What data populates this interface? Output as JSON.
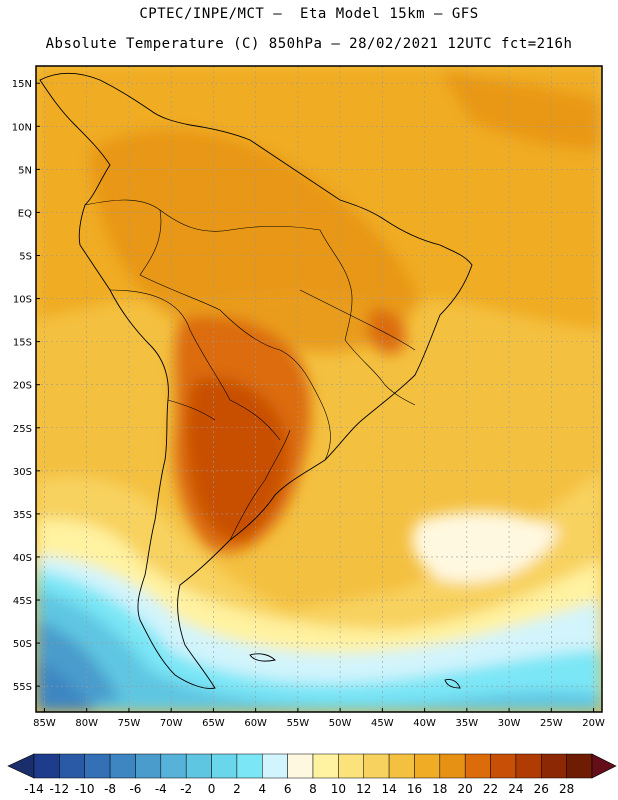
{
  "header": {
    "line1": "CPTEC/INPE/MCT –  Eta Model 15km – GFS",
    "line2": "Absolute Temperature (C) 850hPa – 28/02/2021 12UTC fct=216h"
  },
  "map": {
    "lon_labels": [
      "85W",
      "80W",
      "75W",
      "70W",
      "65W",
      "60W",
      "55W",
      "50W",
      "45W",
      "40W",
      "35W",
      "30W",
      "25W",
      "20W"
    ],
    "lat_labels": [
      "15N",
      "10N",
      "5N",
      "EQ",
      "5S",
      "10S",
      "15S",
      "20S",
      "25S",
      "30S",
      "35S",
      "40S",
      "45S",
      "50S",
      "55S"
    ],
    "lon_range": [
      -86,
      -19
    ],
    "lat_range": [
      17,
      -58
    ]
  },
  "colorbar": {
    "labels": [
      "-14",
      "-12",
      "-10",
      "-8",
      "-6",
      "-4",
      "-2",
      "0",
      "2",
      "4",
      "6",
      "8",
      "10",
      "12",
      "14",
      "16",
      "18",
      "20",
      "22",
      "24",
      "26",
      "28"
    ],
    "colors": [
      "#1e3c8c",
      "#2a5aa6",
      "#3470b6",
      "#3e86c2",
      "#4a9ccc",
      "#56b2d8",
      "#5fc6e2",
      "#6ad6ec",
      "#7ae6f6",
      "#d2f4fc",
      "#fff8e0",
      "#fff2a0",
      "#fbe27a",
      "#f8d25e",
      "#f4c040",
      "#f0ac24",
      "#e69014",
      "#dc6c0a",
      "#c85006",
      "#b03c04",
      "#8c2804",
      "#6e1c04"
    ],
    "low_arrow_color": "#1a2e6c",
    "high_arrow_color": "#640e1a"
  }
}
